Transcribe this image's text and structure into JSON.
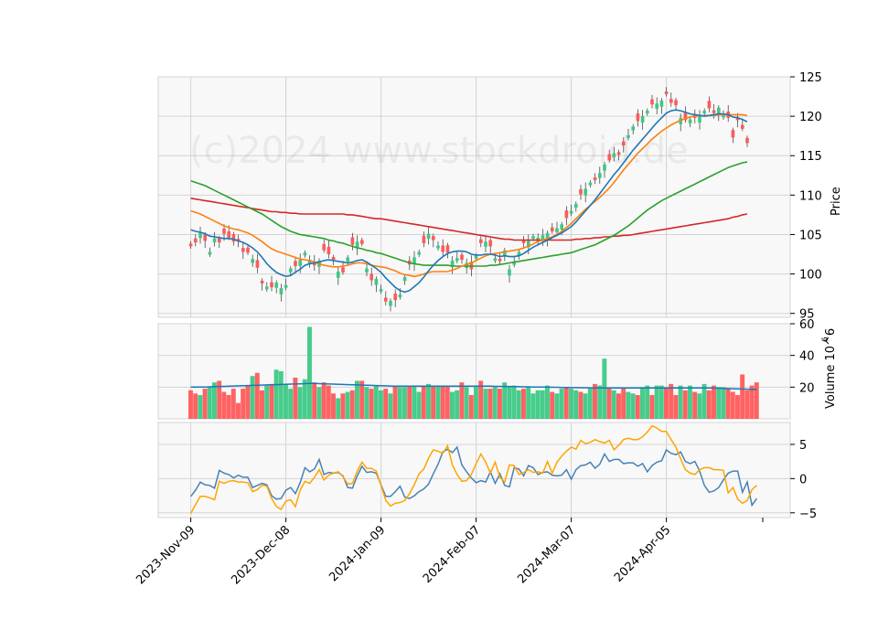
{
  "watermark": "(c)2024 www.stockdroid.de",
  "colors": {
    "up": "#3dc985",
    "down": "#ff5a5a",
    "ma1": "#1f77b4",
    "ma2": "#ff7f0e",
    "ma3": "#2ca02c",
    "ma4": "#d62728",
    "vol_ma": "#1f77b4",
    "osc1": "#4682b4",
    "osc2": "#ffa500",
    "grid": "#d3d3d3",
    "panel_bg": "#f8f8f8"
  },
  "chart_data": [
    {
      "type": "candlestick",
      "ylabel": "Price",
      "ylim": [
        94.5,
        125
      ],
      "yticks": [
        95,
        100,
        105,
        110,
        115,
        120,
        125
      ],
      "x_tick_labels": [
        "2023-Nov-09",
        "2023-Dec-08",
        "2024-Jan-09",
        "2024-Feb-07",
        "2024-Mar-07",
        "2024-Apr-05"
      ],
      "x_tick_index": [
        0,
        20,
        40,
        60,
        80,
        100
      ],
      "n_sessions": 120,
      "close": [
        103.5,
        104.0,
        105.2,
        104.2,
        102.8,
        104.5,
        104.0,
        105.1,
        104.6,
        104.1,
        104.1,
        102.8,
        102.7,
        101.9,
        100.8,
        98.8,
        98.4,
        98.3,
        98.9,
        98.2,
        98.6,
        100.7,
        101.0,
        101.8,
        102.7,
        101.8,
        101.1,
        101.7,
        103.0,
        102.5,
        101.8,
        100.3,
        100.2,
        102.1,
        103.7,
        104.1,
        103.8,
        100.7,
        99.2,
        99.4,
        98.1,
        96.5,
        96.6,
        96.7,
        97.4,
        99.6,
        101.2,
        102.1,
        102.8,
        103.9,
        105.1,
        104.3,
        103.6,
        102.8,
        102.7,
        101.7,
        102.0,
        101.8,
        101.4,
        100.6,
        102.3,
        103.9,
        104.1,
        103.5,
        102.0,
        101.6,
        103.0,
        100.6,
        101.5,
        102.8,
        103.9,
        104.2,
        104.8,
        104.6,
        104.9,
        105.2,
        105.4,
        105.8,
        106.3,
        107.1,
        108.0,
        108.9,
        110.1,
        110.8,
        111.6,
        111.9,
        112.8,
        113.9,
        114.4,
        115.3,
        115.1,
        116.3,
        117.6,
        118.7,
        119.4,
        120.0,
        120.7,
        121.5,
        121.6,
        122.0,
        122.8,
        121.7,
        121.4,
        119.8,
        119.5,
        119.6,
        119.8,
        120.0,
        120.7,
        121.0,
        120.4,
        121.1,
        120.2,
        119.8,
        117.3,
        119.5,
        118.4,
        116.6
      ],
      "ma_fast": [
        105.6,
        105.4,
        105.3,
        105.1,
        104.8,
        104.7,
        104.6,
        104.5,
        104.5,
        104.4,
        104.2,
        104.0,
        103.7,
        103.3,
        102.8,
        102.1,
        101.3,
        100.7,
        100.2,
        99.9,
        99.7,
        99.8,
        100.2,
        100.6,
        101.1,
        101.3,
        101.4,
        101.5,
        101.7,
        101.8,
        101.7,
        101.6,
        101.5,
        101.4,
        101.5,
        101.7,
        101.8,
        101.5,
        101.1,
        100.7,
        100.2,
        99.5,
        98.9,
        98.3,
        97.9,
        97.7,
        97.9,
        98.4,
        98.9,
        99.6,
        100.4,
        101.1,
        101.7,
        102.2,
        102.6,
        102.8,
        102.9,
        102.9,
        102.8,
        102.5,
        102.4,
        102.4,
        102.5,
        102.5,
        102.4,
        102.2,
        102.3,
        102.2,
        102.2,
        102.3,
        102.6,
        103.0,
        103.4,
        103.7,
        104.0,
        104.3,
        104.6,
        104.9,
        105.2,
        105.6,
        106.0,
        106.6,
        107.3,
        108.0,
        108.7,
        109.4,
        110.2,
        111.0,
        111.8,
        112.6,
        113.3,
        114.1,
        114.9,
        115.7,
        116.4,
        117.1,
        117.8,
        118.5,
        119.2,
        119.8,
        120.4,
        120.7,
        120.8,
        120.7,
        120.5,
        120.3,
        120.2,
        120.1,
        120.0,
        120.1,
        120.2,
        120.3,
        120.3,
        120.2,
        119.9,
        119.8,
        119.6,
        119.3
      ],
      "ma_mid": [
        108.0,
        107.8,
        107.6,
        107.3,
        107.0,
        106.7,
        106.4,
        106.1,
        105.9,
        105.7,
        105.6,
        105.4,
        105.2,
        104.9,
        104.5,
        104.1,
        103.6,
        103.2,
        102.9,
        102.7,
        102.5,
        102.3,
        102.1,
        101.9,
        101.8,
        101.7,
        101.5,
        101.3,
        101.1,
        101.0,
        100.9,
        100.9,
        101.0,
        101.1,
        101.3,
        101.4,
        101.4,
        101.3,
        101.1,
        101.0,
        100.9,
        100.8,
        100.6,
        100.4,
        100.1,
        99.9,
        99.8,
        99.7,
        99.8,
        100.0,
        100.2,
        100.3,
        100.3,
        100.3,
        100.3,
        100.5,
        100.7,
        101.0,
        101.2,
        101.4,
        101.7,
        102.0,
        102.3,
        102.5,
        102.6,
        102.7,
        102.8,
        102.9,
        103.0,
        103.1,
        103.3,
        103.5,
        103.8,
        104.1,
        104.3,
        104.5,
        104.7,
        105.0,
        105.4,
        105.9,
        106.4,
        107.0,
        107.6,
        108.2,
        108.7,
        109.2,
        109.7,
        110.3,
        110.9,
        111.6,
        112.4,
        113.2,
        113.9,
        114.6,
        115.3,
        115.9,
        116.5,
        117.1,
        117.6,
        118.1,
        118.5,
        118.9,
        119.2,
        119.5,
        119.7,
        119.9,
        120.0,
        120.1,
        120.1,
        120.1,
        120.1,
        120.2,
        120.2,
        120.2,
        120.2,
        120.2,
        120.2,
        120.1
      ],
      "ma_slow": [
        111.8,
        111.6,
        111.4,
        111.2,
        110.9,
        110.6,
        110.3,
        110.0,
        109.7,
        109.4,
        109.1,
        108.8,
        108.5,
        108.2,
        107.9,
        107.6,
        107.2,
        106.8,
        106.4,
        106.0,
        105.7,
        105.4,
        105.2,
        105.0,
        104.9,
        104.8,
        104.7,
        104.6,
        104.5,
        104.3,
        104.2,
        104.0,
        103.9,
        103.7,
        103.5,
        103.3,
        103.2,
        103.0,
        102.9,
        102.7,
        102.6,
        102.4,
        102.2,
        102.0,
        101.8,
        101.6,
        101.4,
        101.3,
        101.2,
        101.1,
        101.1,
        101.1,
        101.1,
        101.1,
        101.1,
        101.0,
        101.0,
        101.0,
        101.0,
        101.0,
        101.0,
        101.0,
        101.0,
        101.1,
        101.1,
        101.2,
        101.3,
        101.4,
        101.5,
        101.6,
        101.7,
        101.8,
        101.9,
        102.0,
        102.1,
        102.2,
        102.3,
        102.4,
        102.5,
        102.6,
        102.7,
        102.9,
        103.1,
        103.3,
        103.5,
        103.7,
        104.0,
        104.3,
        104.6,
        104.9,
        105.3,
        105.7,
        106.1,
        106.6,
        107.1,
        107.6,
        108.1,
        108.5,
        108.9,
        109.3,
        109.6,
        109.9,
        110.2,
        110.5,
        110.8,
        111.1,
        111.4,
        111.7,
        112.0,
        112.3,
        112.6,
        112.9,
        113.2,
        113.5,
        113.7,
        113.9,
        114.1,
        114.2
      ],
      "ma_long": [
        109.6,
        109.5,
        109.4,
        109.3,
        109.2,
        109.1,
        109.0,
        108.9,
        108.8,
        108.7,
        108.6,
        108.5,
        108.4,
        108.3,
        108.2,
        108.1,
        108.0,
        107.9,
        107.9,
        107.8,
        107.8,
        107.7,
        107.7,
        107.6,
        107.6,
        107.6,
        107.6,
        107.6,
        107.6,
        107.6,
        107.6,
        107.6,
        107.6,
        107.5,
        107.5,
        107.4,
        107.3,
        107.2,
        107.1,
        107.0,
        107.0,
        106.9,
        106.8,
        106.7,
        106.6,
        106.5,
        106.4,
        106.3,
        106.2,
        106.1,
        106.0,
        105.9,
        105.8,
        105.7,
        105.6,
        105.5,
        105.4,
        105.3,
        105.2,
        105.1,
        105.0,
        104.9,
        104.8,
        104.7,
        104.6,
        104.5,
        104.4,
        104.4,
        104.3,
        104.3,
        104.3,
        104.3,
        104.3,
        104.3,
        104.3,
        104.3,
        104.3,
        104.3,
        104.3,
        104.3,
        104.3,
        104.4,
        104.4,
        104.5,
        104.5,
        104.6,
        104.6,
        104.7,
        104.7,
        104.8,
        104.8,
        104.9,
        104.9,
        105.0,
        105.1,
        105.2,
        105.3,
        105.4,
        105.5,
        105.6,
        105.7,
        105.8,
        105.9,
        106.0,
        106.1,
        106.2,
        106.3,
        106.4,
        106.5,
        106.6,
        106.7,
        106.8,
        106.9,
        107.0,
        107.2,
        107.3,
        107.5,
        107.6
      ]
    },
    {
      "type": "bar",
      "ylabel": "Volume  10^6",
      "ylim": [
        0,
        60
      ],
      "yticks": [
        20,
        40,
        60
      ],
      "volume": [
        18,
        16,
        15,
        19,
        20,
        23,
        24,
        17,
        15,
        19,
        10,
        19,
        21,
        27,
        29,
        18,
        21,
        22,
        31,
        30,
        22,
        19,
        26,
        20,
        25,
        58,
        23,
        20,
        23,
        21,
        16,
        13,
        16,
        17,
        18,
        24,
        24,
        20,
        19,
        21,
        18,
        19,
        16,
        21,
        20,
        20,
        21,
        21,
        17,
        21,
        22,
        21,
        21,
        21,
        21,
        17,
        18,
        23,
        20,
        15,
        21,
        24,
        19,
        19,
        20,
        19,
        23,
        20,
        21,
        18,
        19,
        20,
        16,
        18,
        18,
        21,
        17,
        16,
        19,
        20,
        19,
        18,
        17,
        16,
        19,
        22,
        21,
        38,
        19,
        18,
        16,
        19,
        17,
        16,
        15,
        20,
        21,
        15,
        21,
        21,
        20,
        22,
        15,
        21,
        18,
        21,
        17,
        16,
        22,
        18,
        21,
        20,
        20,
        19,
        17,
        15,
        28,
        18,
        21,
        23
      ],
      "volume_ma": [
        20.0,
        20.0,
        20.1,
        20.1,
        20.2,
        20.3,
        20.4,
        20.5,
        20.6,
        20.7,
        20.8,
        20.9,
        21.0,
        21.1,
        21.2,
        21.3,
        21.4,
        21.5,
        21.6,
        21.7,
        21.8,
        21.9,
        22.0,
        22.1,
        22.2,
        22.3,
        22.3,
        22.2,
        22.1,
        22.0,
        21.9,
        21.8,
        21.7,
        21.6,
        21.5,
        21.4,
        21.3,
        21.2,
        21.1,
        21.0,
        20.9,
        20.8,
        20.7,
        20.6,
        20.6,
        20.6,
        20.6,
        20.6,
        20.6,
        20.6,
        20.6,
        20.6,
        20.6,
        20.6,
        20.6,
        20.6,
        20.6,
        20.6,
        20.6,
        20.6,
        20.6,
        20.6,
        20.6,
        20.6,
        20.5,
        20.5,
        20.4,
        20.4,
        20.3,
        20.3,
        20.2,
        20.2,
        20.1,
        20.1,
        20.0,
        20.0,
        19.9,
        19.9,
        19.8,
        19.8,
        19.7,
        19.7,
        19.6,
        19.6,
        19.5,
        19.5,
        19.5,
        19.5,
        19.5,
        19.5,
        19.5,
        19.5,
        19.5,
        19.5,
        19.5,
        19.5,
        19.5,
        19.5,
        19.5,
        19.5,
        19.5,
        19.5,
        19.5,
        19.5,
        19.5,
        19.5,
        19.5,
        19.5,
        19.5,
        19.5,
        19.4,
        19.3,
        19.2,
        19.1,
        19.0,
        18.9,
        18.8,
        18.7,
        18.6,
        18.5
      ]
    },
    {
      "type": "line",
      "ylim": [
        -5.7,
        8.2
      ],
      "yticks": [
        -5,
        0,
        5
      ],
      "series": [
        {
          "values": [
            -2.6,
            -1.7,
            -0.5,
            -0.9,
            -1.0,
            -1.4,
            1.2,
            0.8,
            0.6,
            0.1,
            0.5,
            0.2,
            0.2,
            -1.3,
            -1.0,
            -0.7,
            -0.9,
            -2.5,
            -3.0,
            -2.9,
            -1.7,
            -1.3,
            -2.2,
            -0.6,
            1.6,
            1.0,
            1.4,
            2.8,
            0.6,
            0.9,
            0.8,
            0.9,
            0.4,
            -1.3,
            -1.4,
            0.4,
            1.8,
            0.9,
            1.0,
            0.8,
            -0.9,
            -2.6,
            -2.6,
            -1.9,
            -1.1,
            -2.7,
            -2.9,
            -2.5,
            -1.9,
            -1.5,
            -0.8,
            0.7,
            2.1,
            3.9,
            4.3,
            3.8,
            4.6,
            2.0,
            1.0,
            0.1,
            -0.6,
            -0.3,
            -0.5,
            1.0,
            -0.7,
            0.7,
            -1.0,
            -1.2,
            1.6,
            1.4,
            0.4,
            1.9,
            1.6,
            0.6,
            0.9,
            1.0,
            0.5,
            0.4,
            0.5,
            1.3,
            -0.1,
            1.3,
            1.9,
            2.0,
            2.4,
            1.5,
            2.1,
            3.6,
            2.5,
            2.8,
            2.8,
            2.2,
            2.3,
            2.3,
            1.8,
            2.2,
            1.0,
            1.9,
            2.4,
            2.6,
            4.2,
            3.7,
            3.5,
            3.9,
            2.5,
            2.2,
            2.5,
            1.1,
            -1.0,
            -2.0,
            -1.8,
            -1.3,
            -0.2,
            0.8,
            1.1,
            1.1,
            -2.0,
            -0.5,
            -3.9,
            -2.9
          ]
        },
        {
          "values": [
            -5.1,
            -3.8,
            -2.6,
            -2.6,
            -2.8,
            -3.1,
            -0.4,
            -0.7,
            -0.4,
            -0.3,
            -0.5,
            -0.5,
            -0.6,
            -1.9,
            -1.6,
            -1.0,
            -1.1,
            -2.9,
            -4.1,
            -4.5,
            -3.3,
            -3.1,
            -4.1,
            -1.7,
            -0.4,
            -0.7,
            0.2,
            1.3,
            -0.2,
            0.5,
            0.8,
            1.0,
            0.3,
            -0.8,
            -0.7,
            1.1,
            2.4,
            1.5,
            1.5,
            1.1,
            -1.0,
            -3.2,
            -4.0,
            -3.6,
            -3.5,
            -3.2,
            -2.2,
            -0.9,
            0.7,
            1.4,
            3.0,
            4.2,
            4.0,
            3.7,
            4.8,
            2.0,
            0.6,
            -0.4,
            -0.3,
            0.6,
            2.2,
            3.6,
            2.4,
            0.8,
            2.4,
            0.2,
            -0.5,
            2.0,
            1.9,
            0.6,
            0.9,
            1.3,
            0.9,
            1.0,
            0.8,
            2.5,
            0.8,
            2.4,
            3.3,
            4.0,
            4.6,
            4.3,
            5.6,
            5.1,
            5.3,
            5.7,
            5.4,
            5.2,
            5.6,
            4.2,
            4.9,
            5.7,
            5.9,
            5.7,
            5.7,
            6.1,
            6.8,
            7.7,
            7.4,
            6.9,
            6.9,
            5.7,
            4.6,
            2.9,
            1.3,
            0.8,
            0.6,
            1.3,
            1.6,
            1.6,
            1.3,
            1.3,
            1.2,
            -2.1,
            -1.3,
            -3.0,
            -3.6,
            -3.2,
            -1.6,
            -1.0
          ]
        }
      ]
    }
  ]
}
